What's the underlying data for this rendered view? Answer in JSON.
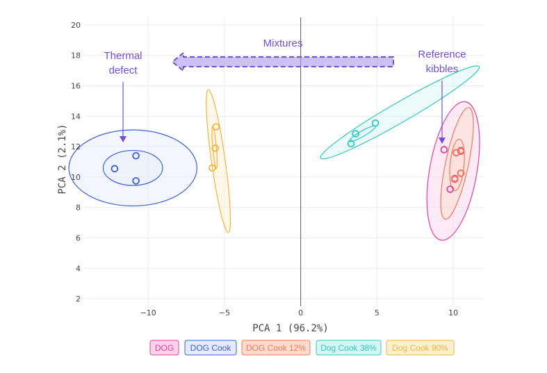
{
  "chart_data": {
    "type": "scatter",
    "xlabel": "PCA 1 (96.2%)",
    "ylabel": "PCA 2 (2.1%)",
    "xlim": [
      -14.2,
      12.0
    ],
    "ylim": [
      1.5,
      20.5
    ],
    "xticks": [
      -10,
      -5,
      0,
      5,
      10
    ],
    "xtick_labels": [
      "−10",
      "−5",
      "0",
      "5",
      "10"
    ],
    "yticks": [
      2,
      4,
      6,
      8,
      10,
      12,
      14,
      16,
      18,
      20
    ],
    "ytick_labels": [
      "2",
      "4",
      "6",
      "8",
      "10",
      "12",
      "14",
      "16",
      "18",
      "20"
    ],
    "grid": true,
    "zero_line_x": true,
    "legend_position": "bottom",
    "series": [
      {
        "name": "DOG",
        "color": "#e0409a",
        "fill": "#f9d3ea",
        "points": [
          [
            9.4,
            11.8
          ],
          [
            9.8,
            9.2
          ],
          [
            10.1,
            9.9
          ],
          [
            10.5,
            10.25
          ],
          [
            10.2,
            11.6
          ],
          [
            10.5,
            11.7
          ]
        ],
        "ellipses": [
          {
            "cx": 10.0,
            "cy": 10.4,
            "rx": 1.55,
            "ry": 4.62,
            "angle_deg": -10
          }
        ]
      },
      {
        "name": "DOG Cook",
        "color": "#3c5fd6",
        "fill": "#e5eafc",
        "points": [
          [
            -12.2,
            10.55
          ],
          [
            -10.8,
            11.4
          ],
          [
            -10.8,
            9.75
          ]
        ],
        "ellipses": [
          {
            "cx": -11.0,
            "cy": 10.6,
            "rx": 1.95,
            "ry": 1.15,
            "angle_deg": 0
          },
          {
            "cx": -11.0,
            "cy": 10.6,
            "rx": 4.2,
            "ry": 2.5,
            "angle_deg": 0
          }
        ]
      },
      {
        "name": "DOG Cook 12%",
        "color": "#f07856",
        "fill": "#fcdccd",
        "points": [
          [
            10.1,
            9.85
          ],
          [
            10.2,
            11.6
          ],
          [
            10.5,
            11.75
          ],
          [
            10.5,
            10.25
          ]
        ],
        "ellipses": [
          {
            "cx": 10.25,
            "cy": 10.8,
            "rx": 0.46,
            "ry": 1.7,
            "angle_deg": -5
          },
          {
            "cx": 10.25,
            "cy": 10.9,
            "rx": 0.75,
            "ry": 3.75,
            "angle_deg": -12
          }
        ]
      },
      {
        "name": "Dog Cook 38%",
        "color": "#2fc8c0",
        "fill": "#d8f5f3",
        "points": [
          [
            3.3,
            12.2
          ],
          [
            3.6,
            12.85
          ],
          [
            4.9,
            13.55
          ]
        ],
        "ellipses": [
          {
            "cx": 4.05,
            "cy": 12.85,
            "rx": 1.0,
            "ry": 0.18,
            "angle_deg": 30
          },
          {
            "cx": 6.5,
            "cy": 14.25,
            "rx": 6.0,
            "ry": 0.65,
            "angle_deg": 30
          }
        ]
      },
      {
        "name": "Dog Cook 90%",
        "color": "#f4b43a",
        "fill": "#fdf0d2",
        "points": [
          [
            -5.8,
            10.6
          ],
          [
            -5.6,
            11.9
          ],
          [
            -5.55,
            13.3
          ]
        ],
        "ellipses": [
          {
            "cx": -5.65,
            "cy": 11.95,
            "rx": 0.12,
            "ry": 1.4,
            "angle_deg": 5
          },
          {
            "cx": -5.4,
            "cy": 11.05,
            "rx": 0.45,
            "ry": 4.75,
            "angle_deg": 8
          }
        ]
      }
    ],
    "annotations": {
      "thermal_line1": "Thermal",
      "thermal_line2": "defect",
      "mixtures": "Mixtures",
      "reference_line1": "Reference",
      "reference_line2": "kibbles"
    }
  }
}
